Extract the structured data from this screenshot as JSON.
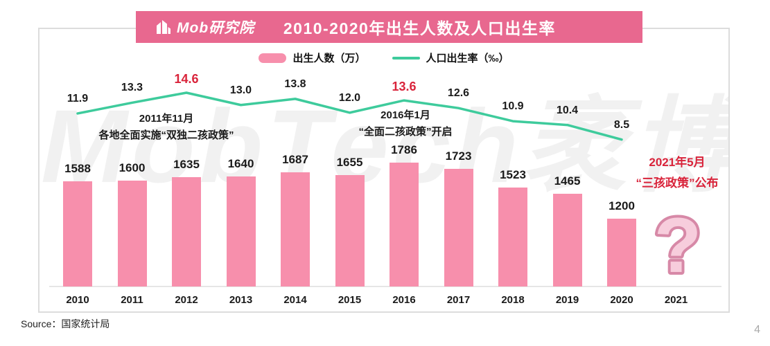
{
  "header": {
    "logo_text": "Mob研究院",
    "title": "2010-2020年出生人数及人口出生率"
  },
  "legend": {
    "bar_label": "出生人数（万）",
    "line_label": "人口出生率（‰）"
  },
  "chart_data": {
    "type": "combo bar+line",
    "title": "2010-2020年出生人数及人口出生率",
    "categories": [
      "2010",
      "2011",
      "2012",
      "2013",
      "2014",
      "2015",
      "2016",
      "2017",
      "2018",
      "2019",
      "2020",
      "2021"
    ],
    "series": [
      {
        "name": "出生人数（万）",
        "type": "bar",
        "values": [
          1588,
          1600,
          1635,
          1640,
          1687,
          1655,
          1786,
          1723,
          1523,
          1465,
          1200
        ]
      },
      {
        "name": "人口出生率（‰）",
        "type": "line",
        "labels": [
          "11.9",
          "13.3",
          "14.6",
          "13.0",
          "13.8",
          "12.0",
          "13.6",
          "12.6",
          "10.9",
          "10.4",
          "8.5"
        ],
        "highlight_indices": [
          2,
          6
        ]
      }
    ],
    "unknown_category_marker": "?",
    "annotations": [
      {
        "line1": "2011年11月",
        "line2": "各地全面实施“双独二孩政策”",
        "emphasis": false
      },
      {
        "line1": "2016年1月",
        "line2": "“全面二孩政策”开启",
        "emphasis": false
      },
      {
        "line1": "2021年5月",
        "line2": "“三孩政策”公布",
        "emphasis": true
      }
    ],
    "legend_position": "top-center",
    "grid": false
  },
  "watermark": "MobTech袤博",
  "footer": {
    "source": "Source：国家统计局",
    "page_number": "4"
  },
  "colors": {
    "banner": "#e8688f",
    "bar": "#f78fac",
    "line": "#3ecb9c",
    "red": "#d9233a",
    "qmark_fill": "#f7cddc",
    "qmark_stroke": "#d789a7"
  }
}
